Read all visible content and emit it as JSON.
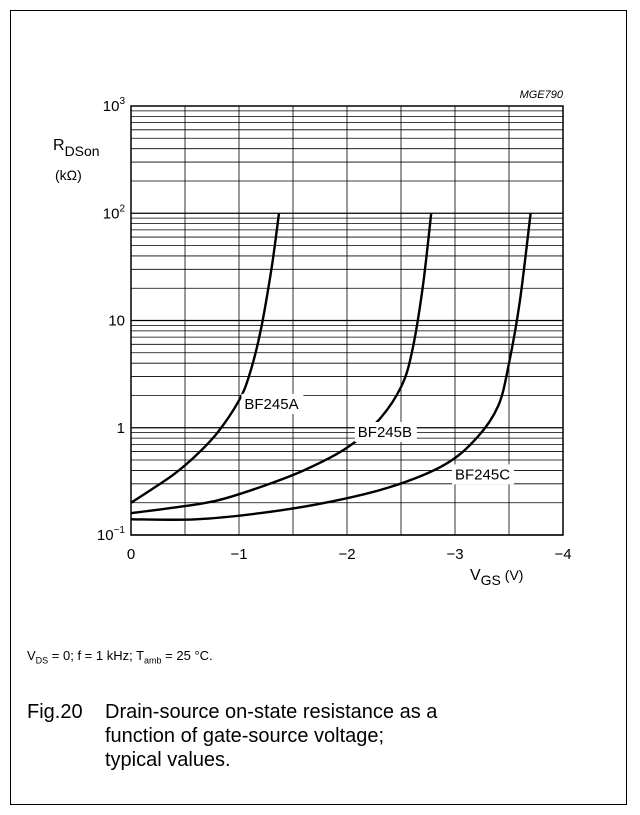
{
  "chart_data": {
    "type": "line",
    "figure_code": "MGE790",
    "y_scale": "log",
    "ylim": [
      0.1,
      1000
    ],
    "xlim": [
      0,
      -4
    ],
    "x_ticks": [
      0,
      -1,
      -2,
      -3,
      -4
    ],
    "x_tick_labels": [
      "0",
      "−1",
      "−2",
      "−3",
      "−4"
    ],
    "y_tick_values": [
      0.1,
      1,
      10,
      100,
      1000
    ],
    "y_tick_labels": [
      {
        "base": "10",
        "sup": "−1"
      },
      {
        "base": "1",
        "sup": ""
      },
      {
        "base": "10",
        "sup": ""
      },
      {
        "base": "10",
        "sup": "2"
      },
      {
        "base": "10",
        "sup": "3"
      }
    ],
    "ylabel": {
      "symbol": "R",
      "sub": "DSon",
      "unit": "(kΩ)"
    },
    "xlabel": {
      "symbol": "V",
      "sub": "GS",
      "unit": "(V)"
    },
    "grid": true,
    "series": [
      {
        "name": "BF245A",
        "x": [
          0,
          -0.2,
          -0.4,
          -0.6,
          -0.8,
          -1.0,
          -1.1,
          -1.2,
          -1.3,
          -1.37
        ],
        "y": [
          0.2,
          0.27,
          0.37,
          0.55,
          0.9,
          1.8,
          3.2,
          8,
          30,
          100
        ]
      },
      {
        "name": "BF245B",
        "x": [
          0,
          -0.4,
          -0.8,
          -1.2,
          -1.6,
          -2.0,
          -2.3,
          -2.5,
          -2.6,
          -2.7,
          -2.78
        ],
        "y": [
          0.16,
          0.18,
          0.21,
          0.28,
          0.4,
          0.65,
          1.2,
          2.4,
          5,
          20,
          100
        ]
      },
      {
        "name": "BF245C",
        "x": [
          0,
          -0.6,
          -1.2,
          -1.8,
          -2.4,
          -2.9,
          -3.2,
          -3.4,
          -3.5,
          -3.6,
          -3.7
        ],
        "y": [
          0.14,
          0.14,
          0.16,
          0.2,
          0.28,
          0.45,
          0.8,
          1.6,
          4,
          15,
          100
        ]
      }
    ]
  },
  "conditions": {
    "v": "V",
    "v_sub": "DS",
    "v_rest": " = 0; f = 1 kHz; T",
    "t_sub": "amb",
    "t_rest": " = 25 °C."
  },
  "caption": {
    "number": "Fig.20",
    "lines": [
      "Drain-source on-state resistance as a",
      "function of gate-source voltage;",
      "typical values."
    ]
  }
}
